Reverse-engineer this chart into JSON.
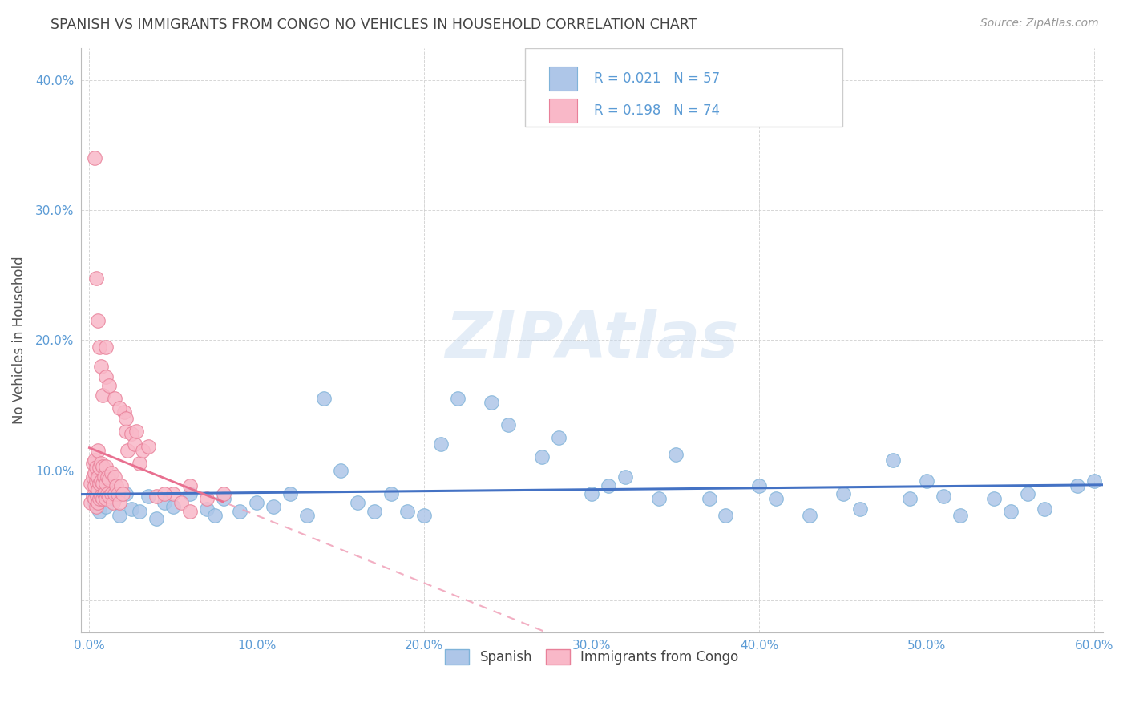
{
  "title": "SPANISH VS IMMIGRANTS FROM CONGO NO VEHICLES IN HOUSEHOLD CORRELATION CHART",
  "source": "Source: ZipAtlas.com",
  "ylabel": "No Vehicles in Household",
  "watermark": "ZIPAtlas",
  "legend_r1": "R = 0.021",
  "legend_n1": "N = 57",
  "legend_r2": "R = 0.198",
  "legend_n2": "N = 74",
  "xlim": [
    -0.005,
    0.605
  ],
  "ylim": [
    -0.025,
    0.425
  ],
  "x_ticks": [
    0.0,
    0.1,
    0.2,
    0.3,
    0.4,
    0.5,
    0.6
  ],
  "y_ticks": [
    0.0,
    0.1,
    0.2,
    0.3,
    0.4
  ],
  "x_tick_labels": [
    "0.0%",
    "10.0%",
    "20.0%",
    "30.0%",
    "40.0%",
    "50.0%",
    "60.0%"
  ],
  "y_tick_labels": [
    "",
    "10.0%",
    "20.0%",
    "30.0%",
    "40.0%"
  ],
  "background_color": "#ffffff",
  "grid_color": "#cccccc",
  "title_color": "#444444",
  "axis_label_color": "#555555",
  "tick_label_color": "#5b9bd5",
  "spanish_color": "#aec6e8",
  "spanish_edge": "#7fb3d9",
  "congo_color": "#f9b8c8",
  "congo_edge": "#e88099",
  "trend_spanish_color": "#4472c4",
  "trend_congo_color": "#e87090",
  "trend_congo_dash_color": "#f0a0b8",
  "spanish_points_x": [
    0.003,
    0.006,
    0.01,
    0.015,
    0.018,
    0.022,
    0.025,
    0.03,
    0.035,
    0.04,
    0.045,
    0.05,
    0.06,
    0.07,
    0.075,
    0.08,
    0.09,
    0.1,
    0.11,
    0.12,
    0.13,
    0.14,
    0.15,
    0.16,
    0.17,
    0.18,
    0.19,
    0.2,
    0.21,
    0.22,
    0.24,
    0.25,
    0.27,
    0.28,
    0.3,
    0.31,
    0.32,
    0.34,
    0.35,
    0.37,
    0.38,
    0.4,
    0.41,
    0.43,
    0.45,
    0.46,
    0.48,
    0.49,
    0.5,
    0.51,
    0.52,
    0.54,
    0.55,
    0.56,
    0.57,
    0.59,
    0.6
  ],
  "spanish_points_y": [
    0.075,
    0.068,
    0.072,
    0.078,
    0.065,
    0.082,
    0.07,
    0.068,
    0.08,
    0.063,
    0.075,
    0.072,
    0.082,
    0.07,
    0.065,
    0.078,
    0.068,
    0.075,
    0.072,
    0.082,
    0.065,
    0.155,
    0.1,
    0.075,
    0.068,
    0.082,
    0.068,
    0.065,
    0.12,
    0.155,
    0.152,
    0.135,
    0.11,
    0.125,
    0.082,
    0.088,
    0.095,
    0.078,
    0.112,
    0.078,
    0.065,
    0.088,
    0.078,
    0.065,
    0.082,
    0.07,
    0.108,
    0.078,
    0.092,
    0.08,
    0.065,
    0.078,
    0.068,
    0.082,
    0.07,
    0.088,
    0.092
  ],
  "congo_points_x": [
    0.001,
    0.001,
    0.002,
    0.002,
    0.002,
    0.003,
    0.003,
    0.003,
    0.003,
    0.004,
    0.004,
    0.004,
    0.004,
    0.005,
    0.005,
    0.005,
    0.005,
    0.006,
    0.006,
    0.006,
    0.007,
    0.007,
    0.007,
    0.008,
    0.008,
    0.008,
    0.009,
    0.009,
    0.01,
    0.01,
    0.01,
    0.011,
    0.011,
    0.012,
    0.012,
    0.013,
    0.013,
    0.014,
    0.015,
    0.015,
    0.016,
    0.017,
    0.018,
    0.019,
    0.02,
    0.021,
    0.022,
    0.023,
    0.025,
    0.027,
    0.03,
    0.032,
    0.04,
    0.05,
    0.06,
    0.07,
    0.08,
    0.003,
    0.004,
    0.005,
    0.006,
    0.007,
    0.008,
    0.01,
    0.012,
    0.015,
    0.018,
    0.022,
    0.028,
    0.035,
    0.045,
    0.055,
    0.06,
    0.01
  ],
  "congo_points_y": [
    0.075,
    0.09,
    0.08,
    0.095,
    0.105,
    0.078,
    0.088,
    0.098,
    0.108,
    0.072,
    0.082,
    0.092,
    0.102,
    0.075,
    0.085,
    0.095,
    0.115,
    0.078,
    0.09,
    0.102,
    0.08,
    0.092,
    0.105,
    0.078,
    0.09,
    0.103,
    0.082,
    0.095,
    0.078,
    0.09,
    0.103,
    0.082,
    0.095,
    0.08,
    0.093,
    0.082,
    0.098,
    0.075,
    0.082,
    0.095,
    0.088,
    0.082,
    0.075,
    0.088,
    0.082,
    0.145,
    0.13,
    0.115,
    0.128,
    0.12,
    0.105,
    0.115,
    0.08,
    0.082,
    0.088,
    0.078,
    0.082,
    0.34,
    0.248,
    0.215,
    0.195,
    0.18,
    0.158,
    0.172,
    0.165,
    0.155,
    0.148,
    0.14,
    0.13,
    0.118,
    0.082,
    0.075,
    0.068,
    0.195
  ]
}
